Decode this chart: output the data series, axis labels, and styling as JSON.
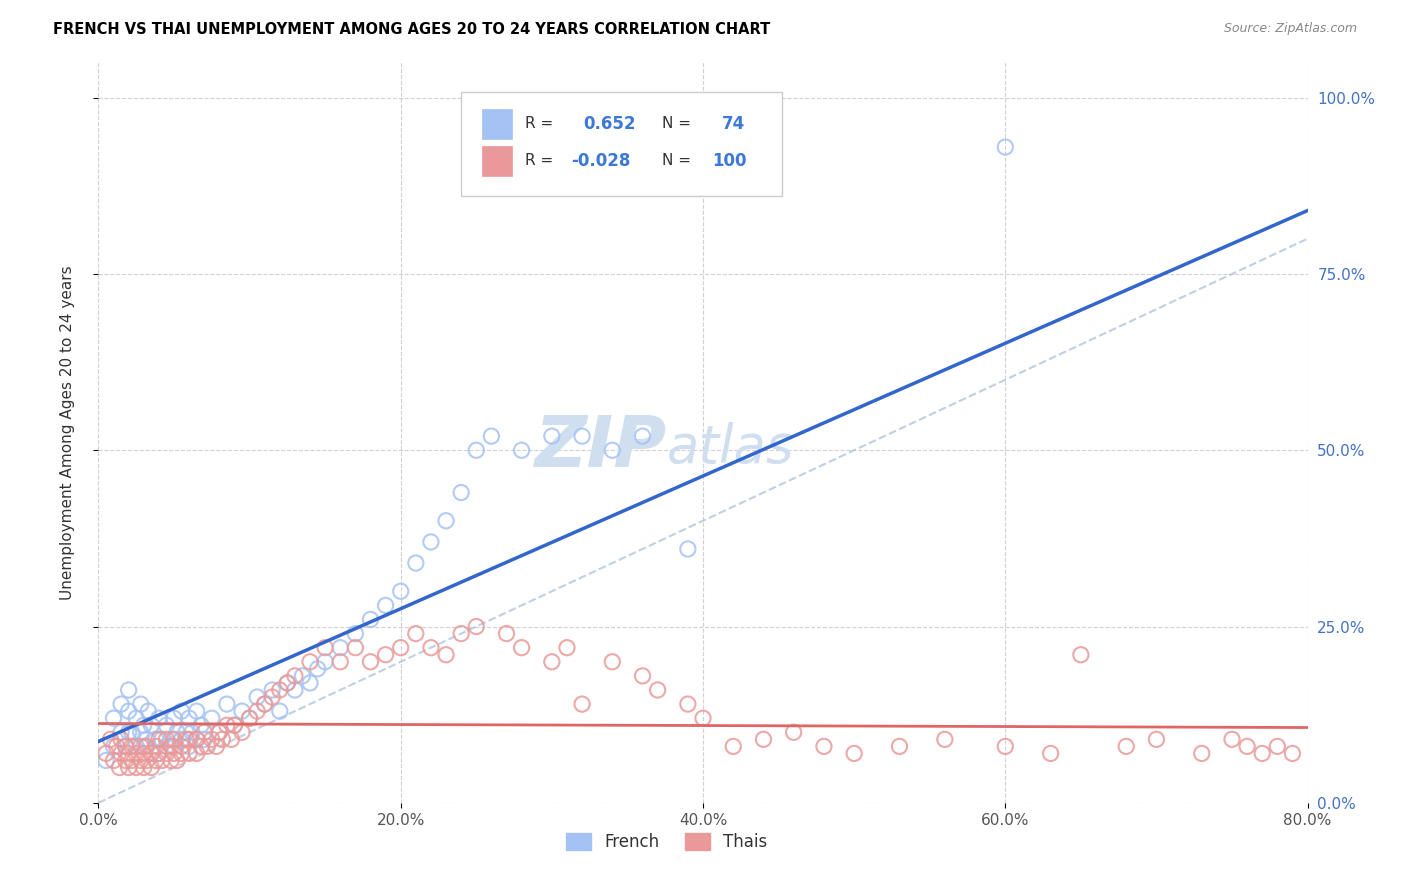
{
  "title": "FRENCH VS THAI UNEMPLOYMENT AMONG AGES 20 TO 24 YEARS CORRELATION CHART",
  "source": "Source: ZipAtlas.com",
  "xlabel_ticks": [
    "0.0%",
    "20.0%",
    "40.0%",
    "60.0%",
    "80.0%"
  ],
  "ylabel_ticks": [
    "0.0%",
    "25.0%",
    "50.0%",
    "75.0%",
    "100.0%"
  ],
  "xlim": [
    0.0,
    0.8
  ],
  "ylim": [
    0.0,
    1.05
  ],
  "ylabel": "Unemployment Among Ages 20 to 24 years",
  "french_R": 0.652,
  "french_N": 74,
  "thai_R": -0.028,
  "thai_N": 100,
  "french_color": "#a4c2f4",
  "thai_color": "#ea9999",
  "trend_french_color": "#3366cc",
  "trend_thai_color": "#e06666",
  "trend_identity_color": "#b0c4de",
  "watermark_color": "#d0dff0",
  "legend_french": "French",
  "legend_thai": "Thais",
  "french_x": [
    0.005,
    0.01,
    0.01,
    0.015,
    0.015,
    0.018,
    0.02,
    0.02,
    0.02,
    0.022,
    0.025,
    0.025,
    0.028,
    0.028,
    0.03,
    0.03,
    0.032,
    0.033,
    0.035,
    0.035,
    0.038,
    0.04,
    0.04,
    0.042,
    0.045,
    0.045,
    0.048,
    0.05,
    0.05,
    0.052,
    0.055,
    0.055,
    0.058,
    0.06,
    0.06,
    0.062,
    0.065,
    0.065,
    0.068,
    0.07,
    0.075,
    0.08,
    0.085,
    0.09,
    0.095,
    0.1,
    0.105,
    0.11,
    0.115,
    0.12,
    0.125,
    0.13,
    0.135,
    0.14,
    0.145,
    0.15,
    0.16,
    0.17,
    0.18,
    0.19,
    0.2,
    0.21,
    0.22,
    0.23,
    0.24,
    0.25,
    0.26,
    0.28,
    0.3,
    0.32,
    0.34,
    0.36,
    0.39,
    0.6
  ],
  "french_y": [
    0.06,
    0.08,
    0.12,
    0.1,
    0.14,
    0.08,
    0.1,
    0.13,
    0.16,
    0.1,
    0.08,
    0.12,
    0.1,
    0.14,
    0.08,
    0.11,
    0.09,
    0.13,
    0.07,
    0.11,
    0.09,
    0.07,
    0.12,
    0.09,
    0.08,
    0.11,
    0.09,
    0.08,
    0.12,
    0.1,
    0.09,
    0.13,
    0.1,
    0.08,
    0.12,
    0.1,
    0.09,
    0.13,
    0.11,
    0.09,
    0.12,
    0.1,
    0.14,
    0.11,
    0.13,
    0.12,
    0.15,
    0.14,
    0.16,
    0.13,
    0.17,
    0.16,
    0.18,
    0.17,
    0.19,
    0.2,
    0.22,
    0.24,
    0.26,
    0.28,
    0.3,
    0.34,
    0.37,
    0.4,
    0.44,
    0.5,
    0.52,
    0.5,
    0.52,
    0.52,
    0.5,
    0.52,
    0.36,
    0.93
  ],
  "thai_x": [
    0.005,
    0.008,
    0.01,
    0.012,
    0.014,
    0.015,
    0.015,
    0.018,
    0.018,
    0.02,
    0.02,
    0.022,
    0.022,
    0.025,
    0.025,
    0.028,
    0.028,
    0.03,
    0.03,
    0.032,
    0.032,
    0.035,
    0.035,
    0.038,
    0.038,
    0.04,
    0.04,
    0.042,
    0.045,
    0.045,
    0.048,
    0.048,
    0.05,
    0.05,
    0.052,
    0.055,
    0.055,
    0.058,
    0.06,
    0.06,
    0.065,
    0.065,
    0.068,
    0.07,
    0.072,
    0.075,
    0.078,
    0.08,
    0.082,
    0.085,
    0.088,
    0.09,
    0.095,
    0.1,
    0.105,
    0.11,
    0.115,
    0.12,
    0.125,
    0.13,
    0.14,
    0.15,
    0.16,
    0.17,
    0.18,
    0.19,
    0.2,
    0.21,
    0.22,
    0.23,
    0.24,
    0.25,
    0.27,
    0.28,
    0.3,
    0.31,
    0.32,
    0.34,
    0.36,
    0.37,
    0.39,
    0.4,
    0.42,
    0.44,
    0.46,
    0.48,
    0.5,
    0.53,
    0.56,
    0.6,
    0.63,
    0.65,
    0.68,
    0.7,
    0.73,
    0.75,
    0.76,
    0.77,
    0.78,
    0.79
  ],
  "thai_y": [
    0.07,
    0.09,
    0.06,
    0.08,
    0.05,
    0.07,
    0.09,
    0.06,
    0.08,
    0.05,
    0.07,
    0.06,
    0.08,
    0.05,
    0.07,
    0.06,
    0.08,
    0.05,
    0.07,
    0.06,
    0.08,
    0.05,
    0.07,
    0.06,
    0.08,
    0.07,
    0.09,
    0.06,
    0.07,
    0.09,
    0.06,
    0.08,
    0.07,
    0.09,
    0.06,
    0.08,
    0.07,
    0.09,
    0.07,
    0.09,
    0.07,
    0.09,
    0.08,
    0.1,
    0.08,
    0.09,
    0.08,
    0.1,
    0.09,
    0.11,
    0.09,
    0.11,
    0.1,
    0.12,
    0.13,
    0.14,
    0.15,
    0.16,
    0.17,
    0.18,
    0.2,
    0.22,
    0.2,
    0.22,
    0.2,
    0.21,
    0.22,
    0.24,
    0.22,
    0.21,
    0.24,
    0.25,
    0.24,
    0.22,
    0.2,
    0.22,
    0.14,
    0.2,
    0.18,
    0.16,
    0.14,
    0.12,
    0.08,
    0.09,
    0.1,
    0.08,
    0.07,
    0.08,
    0.09,
    0.08,
    0.07,
    0.21,
    0.08,
    0.09,
    0.07,
    0.09,
    0.08,
    0.07,
    0.08,
    0.07
  ]
}
